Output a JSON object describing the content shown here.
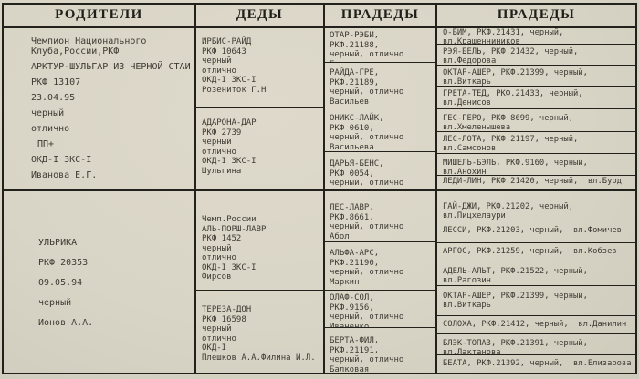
{
  "colors": {
    "paper": "#d9d5c6",
    "ink": "#3e3b34",
    "line": "#22211c"
  },
  "headers": {
    "parents": "РОДИТЕЛИ",
    "grandparents": "ДЕДЫ",
    "great_grandparents": "ПРАДЕДЫ",
    "great_great_grandparents": "ПРАДЕДЫ"
  },
  "parents": {
    "sire": {
      "lines": [
        "Чемпион Национального",
        "Клуба,России,РКФ",
        "АРКТУР-ШУЛЬГАР ИЗ ЧЕРНОЙ СТАИ",
        "РКФ 13107",
        "23.04.95",
        "черный",
        "отлично",
        "ПП+",
        "ОКД-I ЗКС-I",
        "Иванова Е.Г."
      ]
    },
    "dam": {
      "lines": [
        "УЛЬРИКА",
        "РКФ 20353",
        "09.05.94",
        "черный",
        "Ионов А.А."
      ]
    }
  },
  "grandparents": [
    {
      "lines": [
        "ИРБИС-РАЙД",
        "РКФ 10643",
        "черный",
        "отлично",
        "ОКД-I ЗКС-I",
        "Розениток Г.Н"
      ]
    },
    {
      "lines": [
        "АДАРОНА-ДАР",
        "РКФ 2739",
        "черный",
        "отлично",
        "ОКД-I ЗКС-I",
        "Шульгина"
      ]
    },
    {
      "lines": [
        "Чемп.России",
        "АЛЬ-ПОРШ-ЛАВР",
        "РКФ 1452",
        "черный",
        "отлично",
        "ОКД-I ЗКС-I",
        "Фирсов"
      ]
    },
    {
      "lines": [
        "ТЕРЕЗА-ДОН",
        "РКФ 16598",
        "черный",
        "отлично",
        "ОКД-I",
        "Плешков А.А.Филина И.Л."
      ]
    }
  ],
  "great_grandparents": [
    {
      "lines": [
        "ОТАР-РЭБИ,",
        "РКФ.21188,",
        "черный, отлично",
        "Благов"
      ]
    },
    {
      "lines": [
        "РАЙДА-ГРЕ,",
        "РКФ.21189,",
        "черный, отлично",
        "Васильев"
      ]
    },
    {
      "lines": [
        "ОНИКС-ЛАЙК,",
        "РКФ 0610,",
        "черный, отлично",
        "Васильева"
      ]
    },
    {
      "lines": [
        "ДАРЬЯ-БЕНС,",
        "РКФ 0054,",
        "черный, отлично",
        "Анохин,Герасимова"
      ]
    },
    {
      "lines": [
        "ЛЕС-ЛАВР,",
        "РКФ.8661,",
        "черный, отлично",
        "Абол"
      ]
    },
    {
      "lines": [
        "АЛЬФА-АРС,",
        "РКФ.21190,",
        "черный, отлично",
        "Маркин"
      ]
    },
    {
      "lines": [
        "ОЛАФ-СОЛ,",
        "РКФ.9156,",
        "черный, отлично",
        "Иваненко"
      ]
    },
    {
      "lines": [
        "БЕРТА-ФИЛ,",
        "РКФ.21191,",
        "черный, отлично",
        "Балковая"
      ]
    }
  ],
  "great_great_grandparents": [
    {
      "lines": [
        "О-БИМ, РКФ.21431, черный,",
        "вл.Крашенниников"
      ]
    },
    {
      "lines": [
        "РЭЯ-БЕЛЬ, РКФ.21432, черный,",
        "вл.Федорова"
      ]
    },
    {
      "lines": [
        "ОКТАР-АШЕР, РКФ.21399, черный,",
        "вл.Виткарь"
      ]
    },
    {
      "lines": [
        "ГРЕТА-ТЕД, РКФ.21433, черный,",
        "вл.Денисов"
      ]
    },
    {
      "lines": [
        "ГЕС-ГЕРО, РКФ.8699, черный,",
        "вл.Хмеленышева"
      ]
    },
    {
      "lines": [
        "ЛЕС-ЛОТА, РКФ.21197, черный,",
        "вл.Самсонов"
      ]
    },
    {
      "lines": [
        "МИШЕЛЬ-БЭЛЬ, РКФ.9160, черный,",
        "вл.Анохин"
      ]
    },
    {
      "lines": [
        "ЛЕДИ-ЛИН, РКФ.21420, черный,  вл.Бурд"
      ]
    },
    {
      "lines": [
        "ГАЙ-ДЖИ, РКФ.21202, черный,",
        "вл.Пицхелаури"
      ]
    },
    {
      "lines": [
        "ЛЕССИ, РКФ.21203, черный,  вл.Фомичев"
      ]
    },
    {
      "lines": [
        "АРГОС, РКФ.21259, черный,  вл.Кобзев"
      ]
    },
    {
      "lines": [
        "АДЕЛЬ-АЛЬТ, РКФ.21522, черный,",
        "вл.Рагозин"
      ]
    },
    {
      "lines": [
        "ОКТАР-АШЕР, РКФ.21399, черный,",
        "вл.Виткарь"
      ]
    },
    {
      "lines": [
        "СОЛОХА, РКФ.21412, черный,  вл.Данилин"
      ]
    },
    {
      "lines": [
        "БЛЭК-ТОПАЗ, РКФ.21391, черный,",
        "вл.Лактанова"
      ]
    },
    {
      "lines": [
        "БЕАТА, РКФ.21392, черный,  вл.Елизарова"
      ]
    }
  ]
}
